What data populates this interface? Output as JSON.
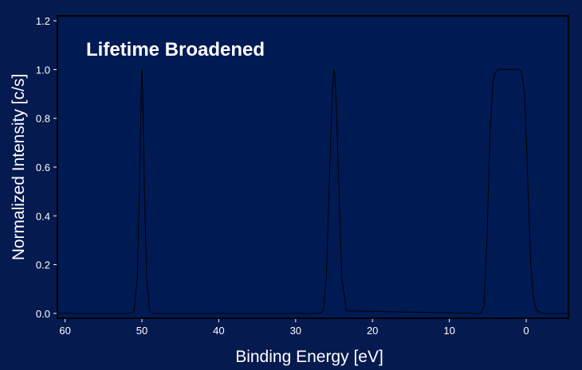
{
  "chart_data": {
    "type": "line",
    "title": "",
    "annotation": "Lifetime Broadened",
    "xlabel": "Binding Energy [eV]",
    "ylabel": "Normalized Intensity [c/s]",
    "xlim": [
      61,
      -5.5
    ],
    "ylim": [
      -0.02,
      1.22
    ],
    "x_inverted": true,
    "x_ticks": [
      60,
      50,
      40,
      30,
      20,
      10,
      0
    ],
    "x_tick_labels": [
      "60",
      "50",
      "40",
      "30",
      "20",
      "10",
      "0"
    ],
    "y_ticks": [
      0.0,
      0.2,
      0.4,
      0.6,
      0.8,
      1.0,
      1.2
    ],
    "y_tick_labels": [
      "0.0",
      "0.2",
      "0.4",
      "0.6",
      "0.8",
      "1.0",
      "1.2"
    ],
    "grid": false,
    "series": [
      {
        "color": "#000000",
        "x": [
          61,
          51.5,
          51.0,
          50.6,
          50.3,
          50.1,
          50.0,
          49.9,
          49.7,
          49.4,
          49.0,
          48.5,
          27.0,
          26.4,
          26.0,
          25.6,
          25.3,
          25.1,
          25.0,
          24.9,
          24.7,
          24.4,
          24.0,
          23.4,
          5.9,
          5.5,
          5.1,
          4.7,
          4.3,
          3.9,
          3.5,
          3.0,
          2.0,
          1.0,
          0.6,
          0.2,
          -0.2,
          -0.6,
          -1.0,
          -1.4,
          -2.2,
          -5.5
        ],
        "y": [
          0,
          0,
          0.01,
          0.15,
          0.55,
          0.9,
          1.0,
          0.9,
          0.55,
          0.15,
          0.01,
          0,
          0,
          0.01,
          0.15,
          0.55,
          0.85,
          0.97,
          1.0,
          0.97,
          0.85,
          0.55,
          0.15,
          0.01,
          0,
          0.03,
          0.3,
          0.75,
          0.96,
          0.995,
          1.0,
          1.0,
          1.0,
          1.0,
          0.99,
          0.9,
          0.55,
          0.2,
          0.05,
          0.01,
          0,
          0
        ]
      }
    ]
  },
  "colors": {
    "background": "#051a4f",
    "plot_area": "#001a54",
    "frame": "#000000",
    "text": "#ffffff",
    "line": "#000000"
  }
}
